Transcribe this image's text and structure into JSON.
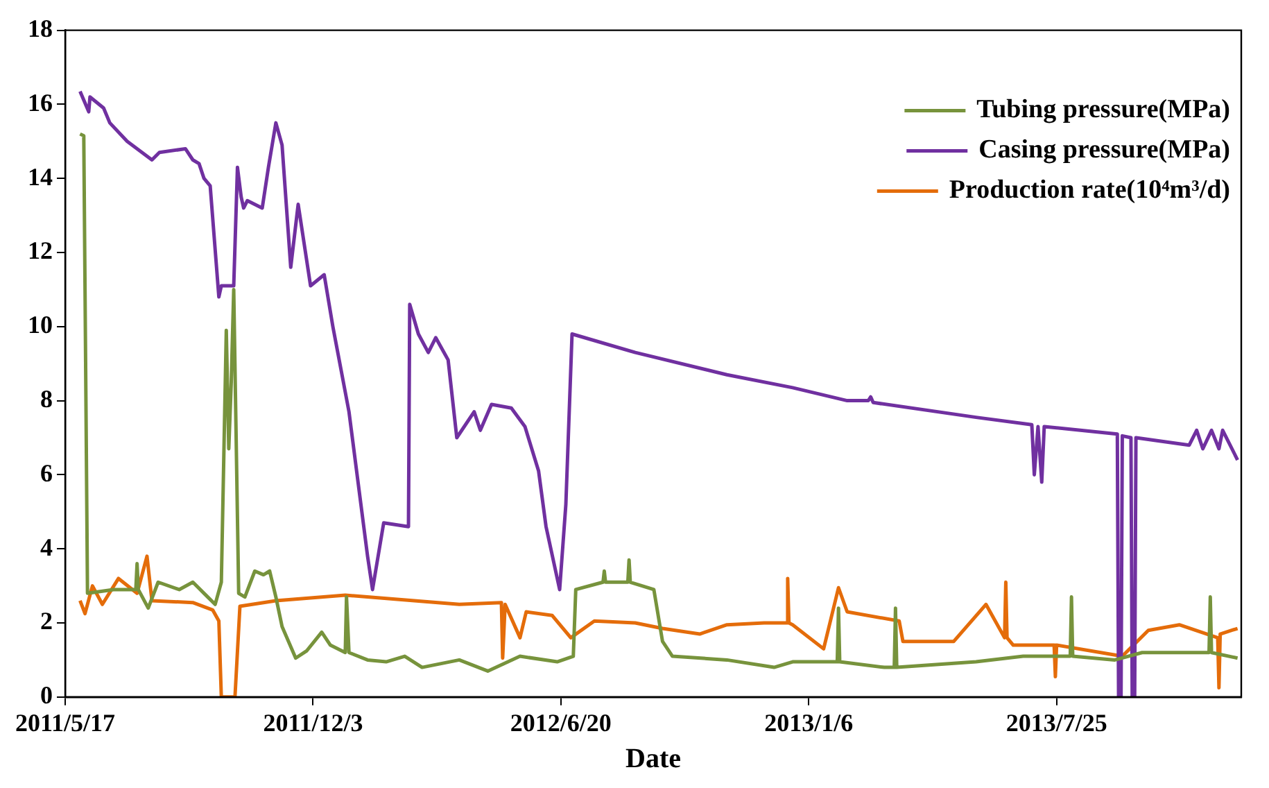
{
  "chart_data": {
    "type": "line",
    "xlabel": "Date",
    "xlim": [
      "2011-05-17",
      "2013-12-21"
    ],
    "xticks": [
      {
        "value": "2011-05-17",
        "label": "2011/5/17"
      },
      {
        "value": "2011-12-03",
        "label": "2011/12/3"
      },
      {
        "value": "2012-06-20",
        "label": "2012/6/20"
      },
      {
        "value": "2013-01-06",
        "label": "2013/1/6"
      },
      {
        "value": "2013-07-25",
        "label": "2013/7/25"
      }
    ],
    "ylim": [
      0,
      18
    ],
    "yticks": [
      0,
      2,
      4,
      6,
      8,
      10,
      12,
      14,
      16,
      18
    ],
    "grid": false,
    "legend": "top right",
    "marker": "none",
    "line_style": "solid",
    "series": [
      {
        "name": "Tubing pressure(MPa)",
        "color": "#77933c",
        "x": [
          "2011-05-29",
          "2011-06-01",
          "2011-06-04",
          "2011-06-25",
          "2011-07-13",
          "2011-07-14",
          "2011-07-15",
          "2011-07-23",
          "2011-07-31",
          "2011-08-17",
          "2011-08-28",
          "2011-09-09",
          "2011-09-15",
          "2011-09-20",
          "2011-09-24",
          "2011-09-26",
          "2011-09-28",
          "2011-09-30",
          "2011-10-04",
          "2011-10-09",
          "2011-10-17",
          "2011-10-24",
          "2011-10-29",
          "2011-11-03",
          "2011-11-08",
          "2011-11-19",
          "2011-11-28",
          "2011-12-10",
          "2011-12-17",
          "2011-12-29",
          "2011-12-30",
          "2012-01-01",
          "2012-01-16",
          "2012-01-31",
          "2012-02-15",
          "2012-02-29",
          "2012-03-30",
          "2012-04-22",
          "2012-05-18",
          "2012-06-17",
          "2012-06-30",
          "2012-07-02",
          "2012-07-24",
          "2012-07-25",
          "2012-07-26",
          "2012-08-13",
          "2012-08-14",
          "2012-08-15",
          "2012-09-03",
          "2012-09-10",
          "2012-09-18",
          "2012-11-01",
          "2012-12-09",
          "2012-12-24",
          "2013-01-29",
          "2013-01-30",
          "2013-01-31",
          "2013-03-08",
          "2013-03-16",
          "2013-03-17",
          "2013-03-18",
          "2013-05-21",
          "2013-06-28",
          "2013-08-05",
          "2013-08-06",
          "2013-08-07",
          "2013-09-10",
          "2013-10-02",
          "2013-11-25",
          "2013-11-26",
          "2013-11-27",
          "2013-12-18"
        ],
        "values": [
          15.2,
          15.15,
          2.8,
          2.9,
          2.9,
          3.6,
          2.9,
          2.4,
          3.1,
          2.9,
          3.1,
          2.7,
          2.5,
          3.1,
          9.9,
          6.7,
          8.5,
          11.0,
          2.8,
          2.7,
          3.4,
          3.3,
          3.4,
          2.7,
          1.9,
          1.05,
          1.25,
          1.75,
          1.4,
          1.2,
          2.7,
          1.2,
          1.0,
          0.95,
          1.1,
          0.8,
          1.0,
          0.7,
          1.1,
          0.95,
          1.1,
          2.9,
          3.1,
          3.4,
          3.1,
          3.1,
          3.7,
          3.1,
          2.9,
          1.5,
          1.1,
          1.0,
          0.8,
          0.95,
          0.95,
          2.4,
          0.95,
          0.8,
          0.8,
          2.4,
          0.8,
          0.95,
          1.1,
          1.1,
          2.7,
          1.1,
          1.0,
          1.2,
          1.2,
          2.7,
          1.2,
          1.05
        ]
      },
      {
        "name": "Casing pressure(MPa)",
        "color": "#7030a0",
        "x": [
          "2011-05-29",
          "2011-06-05",
          "2011-06-06",
          "2011-06-17",
          "2011-06-22",
          "2011-07-06",
          "2011-07-26",
          "2011-08-01",
          "2011-08-22",
          "2011-08-28",
          "2011-09-02",
          "2011-09-06",
          "2011-09-11",
          "2011-09-18",
          "2011-09-20",
          "2011-09-30",
          "2011-10-03",
          "2011-10-06",
          "2011-10-08",
          "2011-10-11",
          "2011-10-23",
          "2011-10-28",
          "2011-11-03",
          "2011-11-08",
          "2011-11-15",
          "2011-11-21",
          "2011-12-01",
          "2011-12-12",
          "2011-12-19",
          "2012-01-01",
          "2012-01-16",
          "2012-01-20",
          "2012-01-29",
          "2012-02-18",
          "2012-02-19",
          "2012-02-26",
          "2012-03-05",
          "2012-03-11",
          "2012-03-21",
          "2012-03-28",
          "2012-04-11",
          "2012-04-16",
          "2012-04-25",
          "2012-05-11",
          "2012-05-22",
          "2012-06-02",
          "2012-06-08",
          "2012-06-19",
          "2012-06-24",
          "2012-06-29",
          "2012-08-19",
          "2012-11-01",
          "2012-12-24",
          "2013-02-06",
          "2013-02-23",
          "2013-02-25",
          "2013-02-27",
          "2013-05-21",
          "2013-07-05",
          "2013-07-07",
          "2013-07-10",
          "2013-07-13",
          "2013-07-15",
          "2013-09-12",
          "2013-09-13",
          "2013-09-15",
          "2013-09-16",
          "2013-09-23",
          "2013-09-24",
          "2013-09-26",
          "2013-09-27",
          "2013-11-09",
          "2013-11-15",
          "2013-11-20",
          "2013-11-27",
          "2013-12-03",
          "2013-12-06",
          "2013-12-18"
        ],
        "values": [
          16.35,
          15.8,
          16.2,
          15.9,
          15.5,
          15.0,
          14.5,
          14.7,
          14.8,
          14.5,
          14.4,
          14.0,
          13.8,
          10.8,
          11.1,
          11.1,
          14.3,
          13.5,
          13.2,
          13.4,
          13.2,
          14.3,
          15.5,
          14.9,
          11.6,
          13.3,
          11.1,
          11.4,
          10.0,
          7.7,
          3.8,
          2.9,
          4.7,
          4.6,
          10.6,
          9.8,
          9.3,
          9.7,
          9.1,
          7.0,
          7.7,
          7.2,
          7.9,
          7.8,
          7.3,
          6.1,
          4.6,
          2.9,
          5.2,
          9.8,
          9.3,
          8.7,
          8.35,
          8.0,
          8.0,
          8.1,
          7.95,
          7.55,
          7.35,
          6.0,
          7.3,
          5.8,
          7.3,
          7.1,
          0,
          0,
          7.05,
          7.0,
          0,
          0,
          7.0,
          6.8,
          7.2,
          6.7,
          7.2,
          6.7,
          7.2,
          6.4
        ]
      },
      {
        "name": "Production rate(10⁴m³/d)",
        "color": "#e46c0a",
        "x": [
          "2011-05-29",
          "2011-06-02",
          "2011-06-08",
          "2011-06-16",
          "2011-06-29",
          "2011-07-14",
          "2011-07-22",
          "2011-07-26",
          "2011-08-28",
          "2011-09-13",
          "2011-09-18",
          "2011-09-20",
          "2011-10-01",
          "2011-10-05",
          "2011-11-03",
          "2011-12-29",
          "2012-03-30",
          "2012-05-03",
          "2012-05-04",
          "2012-05-06",
          "2012-05-18",
          "2012-05-23",
          "2012-06-13",
          "2012-06-28",
          "2012-07-17",
          "2012-08-19",
          "2012-09-10",
          "2012-10-10",
          "2012-11-01",
          "2012-12-01",
          "2012-12-19",
          "2012-12-20",
          "2012-12-21",
          "2012-12-24",
          "2013-01-18",
          "2013-01-30",
          "2013-02-06",
          "2013-03-20",
          "2013-03-23",
          "2013-05-03",
          "2013-05-29",
          "2013-06-13",
          "2013-06-14",
          "2013-06-15",
          "2013-06-20",
          "2013-07-23",
          "2013-07-24",
          "2013-07-25",
          "2013-09-16",
          "2013-10-07",
          "2013-11-01",
          "2013-12-02",
          "2013-12-03",
          "2013-12-04",
          "2013-12-18"
        ],
        "values": [
          2.6,
          2.25,
          3.0,
          2.5,
          3.2,
          2.8,
          3.8,
          2.6,
          2.55,
          2.35,
          2.05,
          0,
          0,
          2.45,
          2.6,
          2.75,
          2.5,
          2.55,
          1.05,
          2.5,
          1.6,
          2.3,
          2.2,
          1.6,
          2.05,
          2.0,
          1.85,
          1.7,
          1.95,
          2.0,
          2.0,
          3.2,
          2.0,
          1.95,
          1.3,
          2.95,
          2.3,
          2.05,
          1.5,
          1.5,
          2.5,
          1.6,
          3.1,
          1.6,
          1.4,
          1.4,
          0.55,
          1.4,
          1.1,
          1.8,
          1.95,
          1.6,
          0.25,
          1.7,
          1.85
        ]
      }
    ]
  }
}
